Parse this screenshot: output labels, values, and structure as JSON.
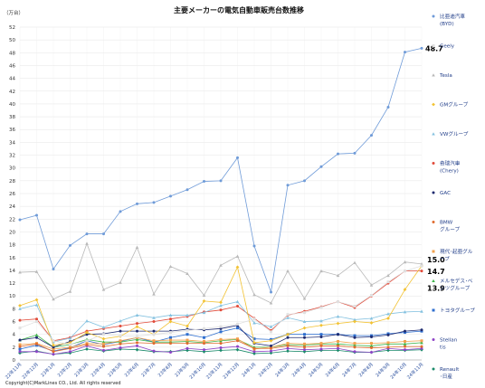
{
  "chart_data": {
    "type": "line",
    "title": "主要メーカーの電気自動車販売台数推移",
    "ylabel": "（万台）",
    "ylim": [
      0,
      52
    ],
    "yticks": [
      0,
      2,
      4,
      6,
      8,
      10,
      12,
      14,
      16,
      18,
      20,
      22,
      24,
      26,
      28,
      30,
      32,
      34,
      36,
      38,
      40,
      42,
      44,
      46,
      48,
      50,
      52
    ],
    "grid": true,
    "legend_position": "right",
    "copyright": "Copyright(C)MarkLines CO., Ltd. All rights reserved",
    "categories": [
      "22年11月",
      "22年12月",
      "23年1月",
      "23年2月",
      "23年3月",
      "23年4月",
      "23年5月",
      "23年6月",
      "23年7月",
      "23年8月",
      "23年9月",
      "23年10月",
      "23年11月",
      "23年12月",
      "24年1月",
      "24年2月",
      "24年3月",
      "24年4月",
      "24年5月",
      "24年6月",
      "24年7月",
      "24年8月",
      "24年9月",
      "24年10月",
      "24年11月"
    ],
    "series": [
      {
        "name": "比亜迪汽車 (BYD)",
        "color": "#6f9bd8",
        "marker": "circle",
        "values": [
          21.9,
          22.6,
          14.2,
          17.9,
          19.7,
          19.7,
          23.2,
          24.4,
          24.6,
          25.6,
          26.6,
          27.9,
          28.0,
          31.6,
          17.8,
          10.6,
          27.3,
          28.0,
          30.2,
          32.2,
          32.3,
          35.1,
          39.5,
          48.1,
          48.7
        ],
        "end_label": "48.7"
      },
      {
        "name": "Geely",
        "color": "#e0e0e0",
        "marker": "square",
        "values": [
          5.0,
          6.0,
          3.0,
          2.4,
          3.0,
          4.0,
          3.8,
          3.7,
          4.0,
          4.3,
          4.6,
          4.9,
          5.2,
          5.6,
          6.4,
          4.4,
          7.1,
          7.4,
          8.2,
          9.1,
          8.4,
          10.1,
          12.2,
          13.9,
          14.7
        ]
      },
      {
        "name": "Tesla",
        "color": "#b9b9b9",
        "marker": "triangle",
        "values": [
          13.7,
          13.8,
          9.5,
          10.7,
          18.2,
          11.0,
          12.1,
          17.6,
          10.3,
          14.6,
          13.5,
          10.1,
          14.8,
          16.2,
          10.2,
          8.9,
          13.9,
          9.6,
          13.9,
          13.2,
          15.2,
          11.7,
          13.2,
          15.3,
          15.0
        ],
        "end_label": "15.0"
      },
      {
        "name": "GMグループ",
        "color": "#f2c233",
        "marker": "diamond",
        "values": [
          8.5,
          9.4,
          2.3,
          2.7,
          4.3,
          3.3,
          3.7,
          5.2,
          4.0,
          6.0,
          5.3,
          9.2,
          9.0,
          14.5,
          2.7,
          3.0,
          4.0,
          5.0,
          5.4,
          5.7,
          6.0,
          5.8,
          6.5,
          11.0,
          14.7
        ],
        "end_label": "14.7"
      },
      {
        "name": "VWグループ",
        "color": "#85c2e0",
        "marker": "triangle",
        "values": [
          8.0,
          8.6,
          2.8,
          3.4,
          6.1,
          5.1,
          6.1,
          7.0,
          6.6,
          7.0,
          7.0,
          7.4,
          8.5,
          9.1,
          5.8,
          5.2,
          6.6,
          6.0,
          6.1,
          6.8,
          6.3,
          6.5,
          7.2,
          7.5,
          7.6
        ]
      },
      {
        "name": "奇瑞汽車 (Chery)",
        "color": "#e14b3a",
        "marker": "circle",
        "values": [
          6.2,
          6.4,
          3.0,
          3.5,
          4.5,
          4.9,
          5.3,
          5.7,
          6.0,
          6.4,
          6.8,
          7.5,
          7.8,
          8.4,
          6.5,
          4.6,
          7.0,
          7.6,
          8.3,
          9.1,
          8.2,
          10.0,
          12.0,
          13.9,
          13.9
        ],
        "end_label": "13.9"
      },
      {
        "name": "GAC",
        "color": "#1e2a6f",
        "marker": "circle",
        "values": [
          3.1,
          3.5,
          2.0,
          2.9,
          4.0,
          4.1,
          4.5,
          4.5,
          4.5,
          4.5,
          4.8,
          4.7,
          4.9,
          5.4,
          2.6,
          2.2,
          3.5,
          3.5,
          3.6,
          4.0,
          3.5,
          3.6,
          3.9,
          4.5,
          4.7
        ]
      },
      {
        "name": "BMW グループ",
        "color": "#e06b2f",
        "marker": "circle",
        "values": [
          2.1,
          2.5,
          1.3,
          1.8,
          2.4,
          2.1,
          2.5,
          2.7,
          2.6,
          2.6,
          2.6,
          2.6,
          2.6,
          3.0,
          1.8,
          1.8,
          2.2,
          2.0,
          2.2,
          2.2,
          2.0,
          1.9,
          2.0,
          2.1,
          2.1
        ]
      },
      {
        "name": "現代･起亜グループ",
        "color": "#f2a24e",
        "marker": "square",
        "values": [
          2.4,
          2.6,
          1.7,
          2.0,
          2.6,
          2.5,
          3.0,
          3.5,
          3.0,
          3.1,
          3.1,
          2.9,
          3.2,
          3.3,
          1.7,
          2.0,
          2.6,
          2.5,
          2.6,
          2.9,
          2.6,
          2.6,
          2.7,
          2.9,
          3.0
        ]
      },
      {
        "name": "メルセデス･ベンツグループ",
        "color": "#3fb54a",
        "marker": "triangle",
        "values": [
          3.1,
          3.9,
          2.0,
          2.4,
          3.2,
          2.8,
          2.8,
          3.2,
          2.8,
          2.8,
          2.9,
          2.7,
          3.0,
          3.2,
          2.0,
          2.0,
          2.4,
          2.3,
          2.5,
          2.5,
          2.3,
          2.2,
          2.5,
          2.5,
          2.7
        ]
      },
      {
        "name": "トヨタグループ",
        "color": "#2f6fcf",
        "marker": "square",
        "values": [
          1.7,
          2.3,
          1.4,
          1.9,
          3.0,
          2.4,
          2.9,
          3.5,
          2.8,
          3.5,
          4.0,
          3.5,
          4.4,
          5.0,
          3.3,
          3.2,
          4.0,
          4.0,
          4.0,
          4.0,
          3.8,
          3.8,
          4.1,
          4.3,
          4.5
        ]
      },
      {
        "name": "Stellantis",
        "color": "#8e44c7",
        "marker": "circle",
        "values": [
          1.3,
          1.3,
          0.9,
          1.3,
          2.2,
          1.5,
          1.9,
          2.2,
          1.4,
          1.2,
          1.8,
          1.6,
          1.9,
          2.1,
          1.3,
          1.4,
          1.8,
          1.6,
          1.7,
          1.8,
          1.3,
          1.2,
          1.8,
          1.6,
          1.8
        ]
      },
      {
        "name": "Renault･日産",
        "color": "#1a8a6a",
        "marker": "diamond",
        "values": [
          1.1,
          1.4,
          0.9,
          1.1,
          1.7,
          1.4,
          1.7,
          1.6,
          1.3,
          1.3,
          1.5,
          1.3,
          1.5,
          1.6,
          1.0,
          1.1,
          1.4,
          1.3,
          1.5,
          1.5,
          1.2,
          1.2,
          1.5,
          1.5,
          1.6
        ]
      }
    ]
  }
}
